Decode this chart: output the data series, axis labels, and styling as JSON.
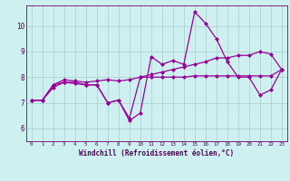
{
  "xlabel": "Windchill (Refroidissement éolien,°C)",
  "background_color": "#cff0f0",
  "grid_color": "#aacccc",
  "line_color": "#990099",
  "spine_color": "#770077",
  "xlim": [
    -0.5,
    23.5
  ],
  "ylim": [
    5.5,
    10.8
  ],
  "yticks": [
    6,
    7,
    8,
    9,
    10
  ],
  "xticks": [
    0,
    1,
    2,
    3,
    4,
    5,
    6,
    7,
    8,
    9,
    10,
    11,
    12,
    13,
    14,
    15,
    16,
    17,
    18,
    19,
    20,
    21,
    22,
    23
  ],
  "series1_x": [
    0,
    1,
    2,
    3,
    4,
    5,
    6,
    7,
    8,
    9,
    10,
    11,
    12,
    13,
    14,
    15,
    16,
    17,
    18,
    19,
    20,
    21,
    22,
    23
  ],
  "series1_y": [
    7.1,
    7.1,
    7.7,
    7.8,
    7.8,
    7.7,
    7.7,
    7.0,
    7.1,
    6.3,
    6.6,
    8.8,
    8.5,
    8.65,
    8.5,
    10.55,
    10.1,
    9.5,
    8.6,
    8.0,
    8.0,
    7.3,
    7.5,
    8.3
  ],
  "series2_x": [
    0,
    1,
    2,
    3,
    4,
    5,
    6,
    7,
    8,
    9,
    10,
    11,
    12,
    13,
    14,
    15,
    16,
    17,
    18,
    19,
    20,
    21,
    22,
    23
  ],
  "series2_y": [
    7.1,
    7.1,
    7.6,
    7.8,
    7.75,
    7.7,
    7.7,
    7.0,
    7.1,
    6.4,
    8.0,
    8.0,
    8.0,
    8.0,
    8.0,
    8.05,
    8.05,
    8.05,
    8.05,
    8.05,
    8.05,
    8.05,
    8.05,
    8.3
  ],
  "series3_x": [
    0,
    1,
    2,
    3,
    4,
    5,
    6,
    7,
    8,
    9,
    10,
    11,
    12,
    13,
    14,
    15,
    16,
    17,
    18,
    19,
    20,
    21,
    22,
    23
  ],
  "series3_y": [
    7.1,
    7.1,
    7.7,
    7.9,
    7.85,
    7.8,
    7.85,
    7.9,
    7.85,
    7.9,
    8.0,
    8.1,
    8.2,
    8.3,
    8.4,
    8.5,
    8.6,
    8.75,
    8.75,
    8.85,
    8.85,
    9.0,
    8.9,
    8.3
  ]
}
